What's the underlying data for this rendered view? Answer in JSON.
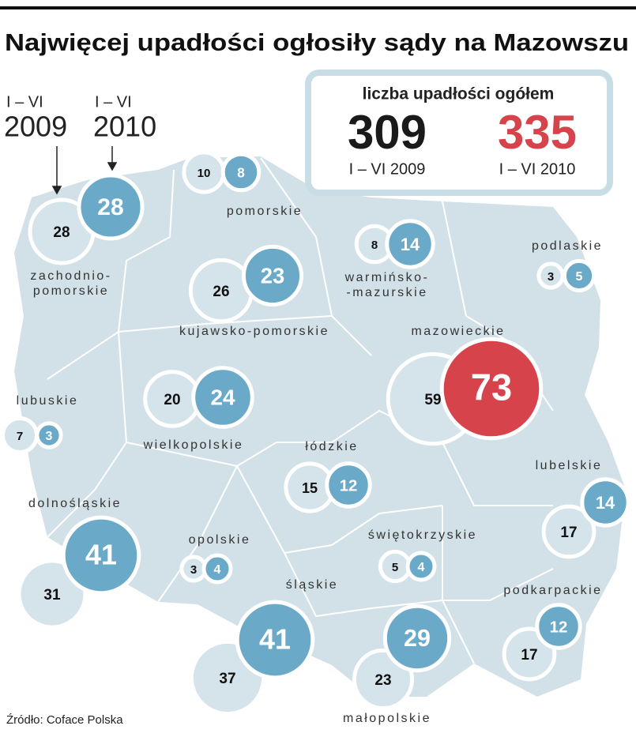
{
  "title": "Najwięcej upadłości ogłosiły sądy na Mazowszu",
  "legend": {
    "period_2009": "I – VI",
    "year_2009": "2009",
    "period_2010": "I – VI",
    "year_2010": "2010"
  },
  "summary": {
    "heading": "liczba upadłości ogółem",
    "total_2009": 309,
    "label_2009": "I – VI 2009",
    "total_2010": 335,
    "label_2010": "I – VI 2010"
  },
  "colors": {
    "y2009": "#d5e3ea",
    "y2010": "#6aaac8",
    "highlight": "#d6434b",
    "total_2009": "#1a1a1a",
    "total_2010": "#d6434b"
  },
  "regions": [
    {
      "name_lines": [
        "zachodnio-",
        "pomorskie"
      ],
      "v2009": 28,
      "v2010": 28
    },
    {
      "name_lines": [
        "pomorskie"
      ],
      "v2009": 10,
      "v2010": 8
    },
    {
      "name_lines": [
        "warmińsko-",
        "-mazurskie"
      ],
      "v2009": 8,
      "v2010": 14
    },
    {
      "name_lines": [
        "podlaskie"
      ],
      "v2009": 3,
      "v2010": 5
    },
    {
      "name_lines": [
        "kujawsko-pomorskie"
      ],
      "v2009": 26,
      "v2010": 23
    },
    {
      "name_lines": [
        "mazowieckie"
      ],
      "v2009": 59,
      "v2010": 73,
      "highlight": true
    },
    {
      "name_lines": [
        "lubuskie"
      ],
      "v2009": 7,
      "v2010": 3
    },
    {
      "name_lines": [
        "wielkopolskie"
      ],
      "v2009": 20,
      "v2010": 24
    },
    {
      "name_lines": [
        "łódzkie"
      ],
      "v2009": 15,
      "v2010": 12
    },
    {
      "name_lines": [
        "lubelskie"
      ],
      "v2009": 17,
      "v2010": 14
    },
    {
      "name_lines": [
        "dolnośląskie"
      ],
      "v2009": 31,
      "v2010": 41
    },
    {
      "name_lines": [
        "opolskie"
      ],
      "v2009": 3,
      "v2010": 4
    },
    {
      "name_lines": [
        "świętokrzyskie"
      ],
      "v2009": 5,
      "v2010": 4
    },
    {
      "name_lines": [
        "śląskie"
      ],
      "v2009": 37,
      "v2010": 41
    },
    {
      "name_lines": [
        "podkarpackie"
      ],
      "v2009": 17,
      "v2010": 12
    },
    {
      "name_lines": [
        "małopolskie"
      ],
      "v2009": 23,
      "v2010": 29
    }
  ],
  "source": "Źródło: Coface Polska"
}
